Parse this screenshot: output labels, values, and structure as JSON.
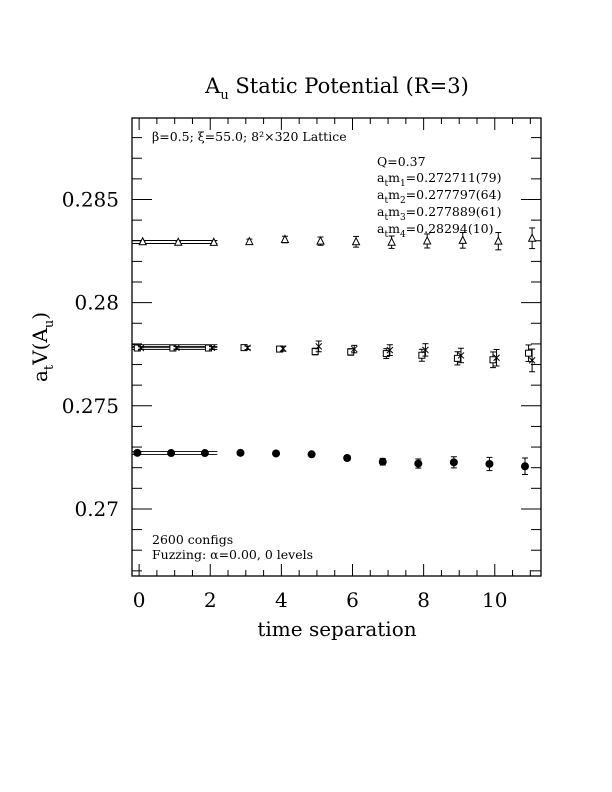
{
  "chart_data": {
    "type": "scatter",
    "title_main": "A",
    "title_sub": "u",
    "title_rest": " Static Potential (R=3)",
    "xlabel": "time separation",
    "ylabel_main": "a",
    "ylabel_sub1": "t",
    "ylabel_mid": "V(A",
    "ylabel_sub2": "u",
    "ylabel_end": ")",
    "xlim": [
      -0.2,
      11.3
    ],
    "ylim": [
      0.26675,
      0.28895
    ],
    "xticks": [
      0,
      2,
      4,
      6,
      8,
      10
    ],
    "xtick_labels": [
      "0",
      "2",
      "4",
      "6",
      "8",
      "10"
    ],
    "yticks": [
      0.27,
      0.275,
      0.28,
      0.285
    ],
    "ytick_labels": [
      "0.27",
      "0.275",
      "0.28",
      "0.285"
    ],
    "lattice_note": "β=0.5; ξ=55.0; 8²×320 Lattice",
    "stats": {
      "q": "Q=0.37",
      "masses": [
        {
          "pre": "a",
          "sub1": "t",
          "m": "m",
          "sub2": "1",
          "val": "=0.272711(79)"
        },
        {
          "pre": "a",
          "sub1": "t",
          "m": "m",
          "sub2": "2",
          "val": "=0.277797(64)"
        },
        {
          "pre": "a",
          "sub1": "t",
          "m": "m",
          "sub2": "3",
          "val": "=0.277889(61)"
        },
        {
          "pre": "a",
          "sub1": "t",
          "m": "m",
          "sub2": "4",
          "val": "=0.28294(10)"
        }
      ]
    },
    "configs_note": "2600 configs",
    "fuzzing_note": "Fuzzing: α=0.00, 0 levels",
    "series": [
      {
        "marker": "filled-circle",
        "x": [
          -0.05,
          0.9,
          1.85,
          2.85,
          3.85,
          4.85,
          5.85,
          6.85,
          7.85,
          8.85,
          9.85,
          10.85
        ],
        "y": [
          0.27272,
          0.27271,
          0.27271,
          0.27272,
          0.27269,
          0.27265,
          0.27247,
          0.27229,
          0.2722,
          0.27226,
          0.27218,
          0.27207
        ],
        "err": [
          8e-05,
          6e-05,
          6e-05,
          6e-05,
          8e-05,
          9e-05,
          0.00012,
          0.00016,
          0.00022,
          0.00027,
          0.00032,
          0.0004
        ],
        "fit": {
          "y": 0.272711,
          "x": [
            -0.2,
            2.2
          ]
        }
      },
      {
        "marker": "open-square",
        "x": [
          -0.05,
          0.95,
          1.95,
          2.95,
          3.95,
          4.95,
          5.95,
          6.95,
          7.95,
          8.95,
          9.95,
          10.95
        ],
        "y": [
          0.2778,
          0.2778,
          0.2778,
          0.27782,
          0.27775,
          0.27763,
          0.27761,
          0.27753,
          0.27745,
          0.2773,
          0.27723,
          0.27755
        ],
        "err": [
          7e-05,
          6e-05,
          6e-05,
          8e-05,
          0.00012,
          0.00016,
          0.00016,
          0.00024,
          0.00029,
          0.00032,
          0.00038,
          0.0004
        ],
        "fit": {
          "y": 0.277797,
          "x": [
            -0.2,
            2.2
          ]
        }
      },
      {
        "marker": "cross",
        "x": [
          0.05,
          1.05,
          2.05,
          3.05,
          4.05,
          5.05,
          6.05,
          7.05,
          8.05,
          9.05,
          10.05,
          11.05
        ],
        "y": [
          0.2778,
          0.27781,
          0.27781,
          0.27781,
          0.27777,
          0.27788,
          0.27775,
          0.2777,
          0.27771,
          0.27744,
          0.27733,
          0.2772
        ],
        "err": [
          6e-05,
          6e-05,
          6e-05,
          8e-05,
          0.00012,
          0.00026,
          0.00018,
          0.00026,
          0.0003,
          0.00035,
          0.0004,
          0.00055
        ],
        "fit": {
          "y": 0.277889,
          "x": [
            -0.2,
            2.2
          ]
        }
      },
      {
        "marker": "open-triangle",
        "x": [
          0.1,
          1.1,
          2.1,
          3.1,
          4.1,
          5.1,
          6.1,
          7.1,
          8.1,
          9.1,
          10.1,
          11.05
        ],
        "y": [
          0.28295,
          0.28293,
          0.28292,
          0.28296,
          0.28306,
          0.28298,
          0.28295,
          0.28293,
          0.28299,
          0.28302,
          0.28298,
          0.28312
        ],
        "err": [
          5e-05,
          6e-05,
          8e-05,
          0.00012,
          0.00016,
          0.0002,
          0.00026,
          0.0003,
          0.00034,
          0.00038,
          0.00042,
          0.0005
        ],
        "fit": {
          "y": 0.28294,
          "x": [
            -0.2,
            2.2
          ]
        }
      }
    ]
  }
}
